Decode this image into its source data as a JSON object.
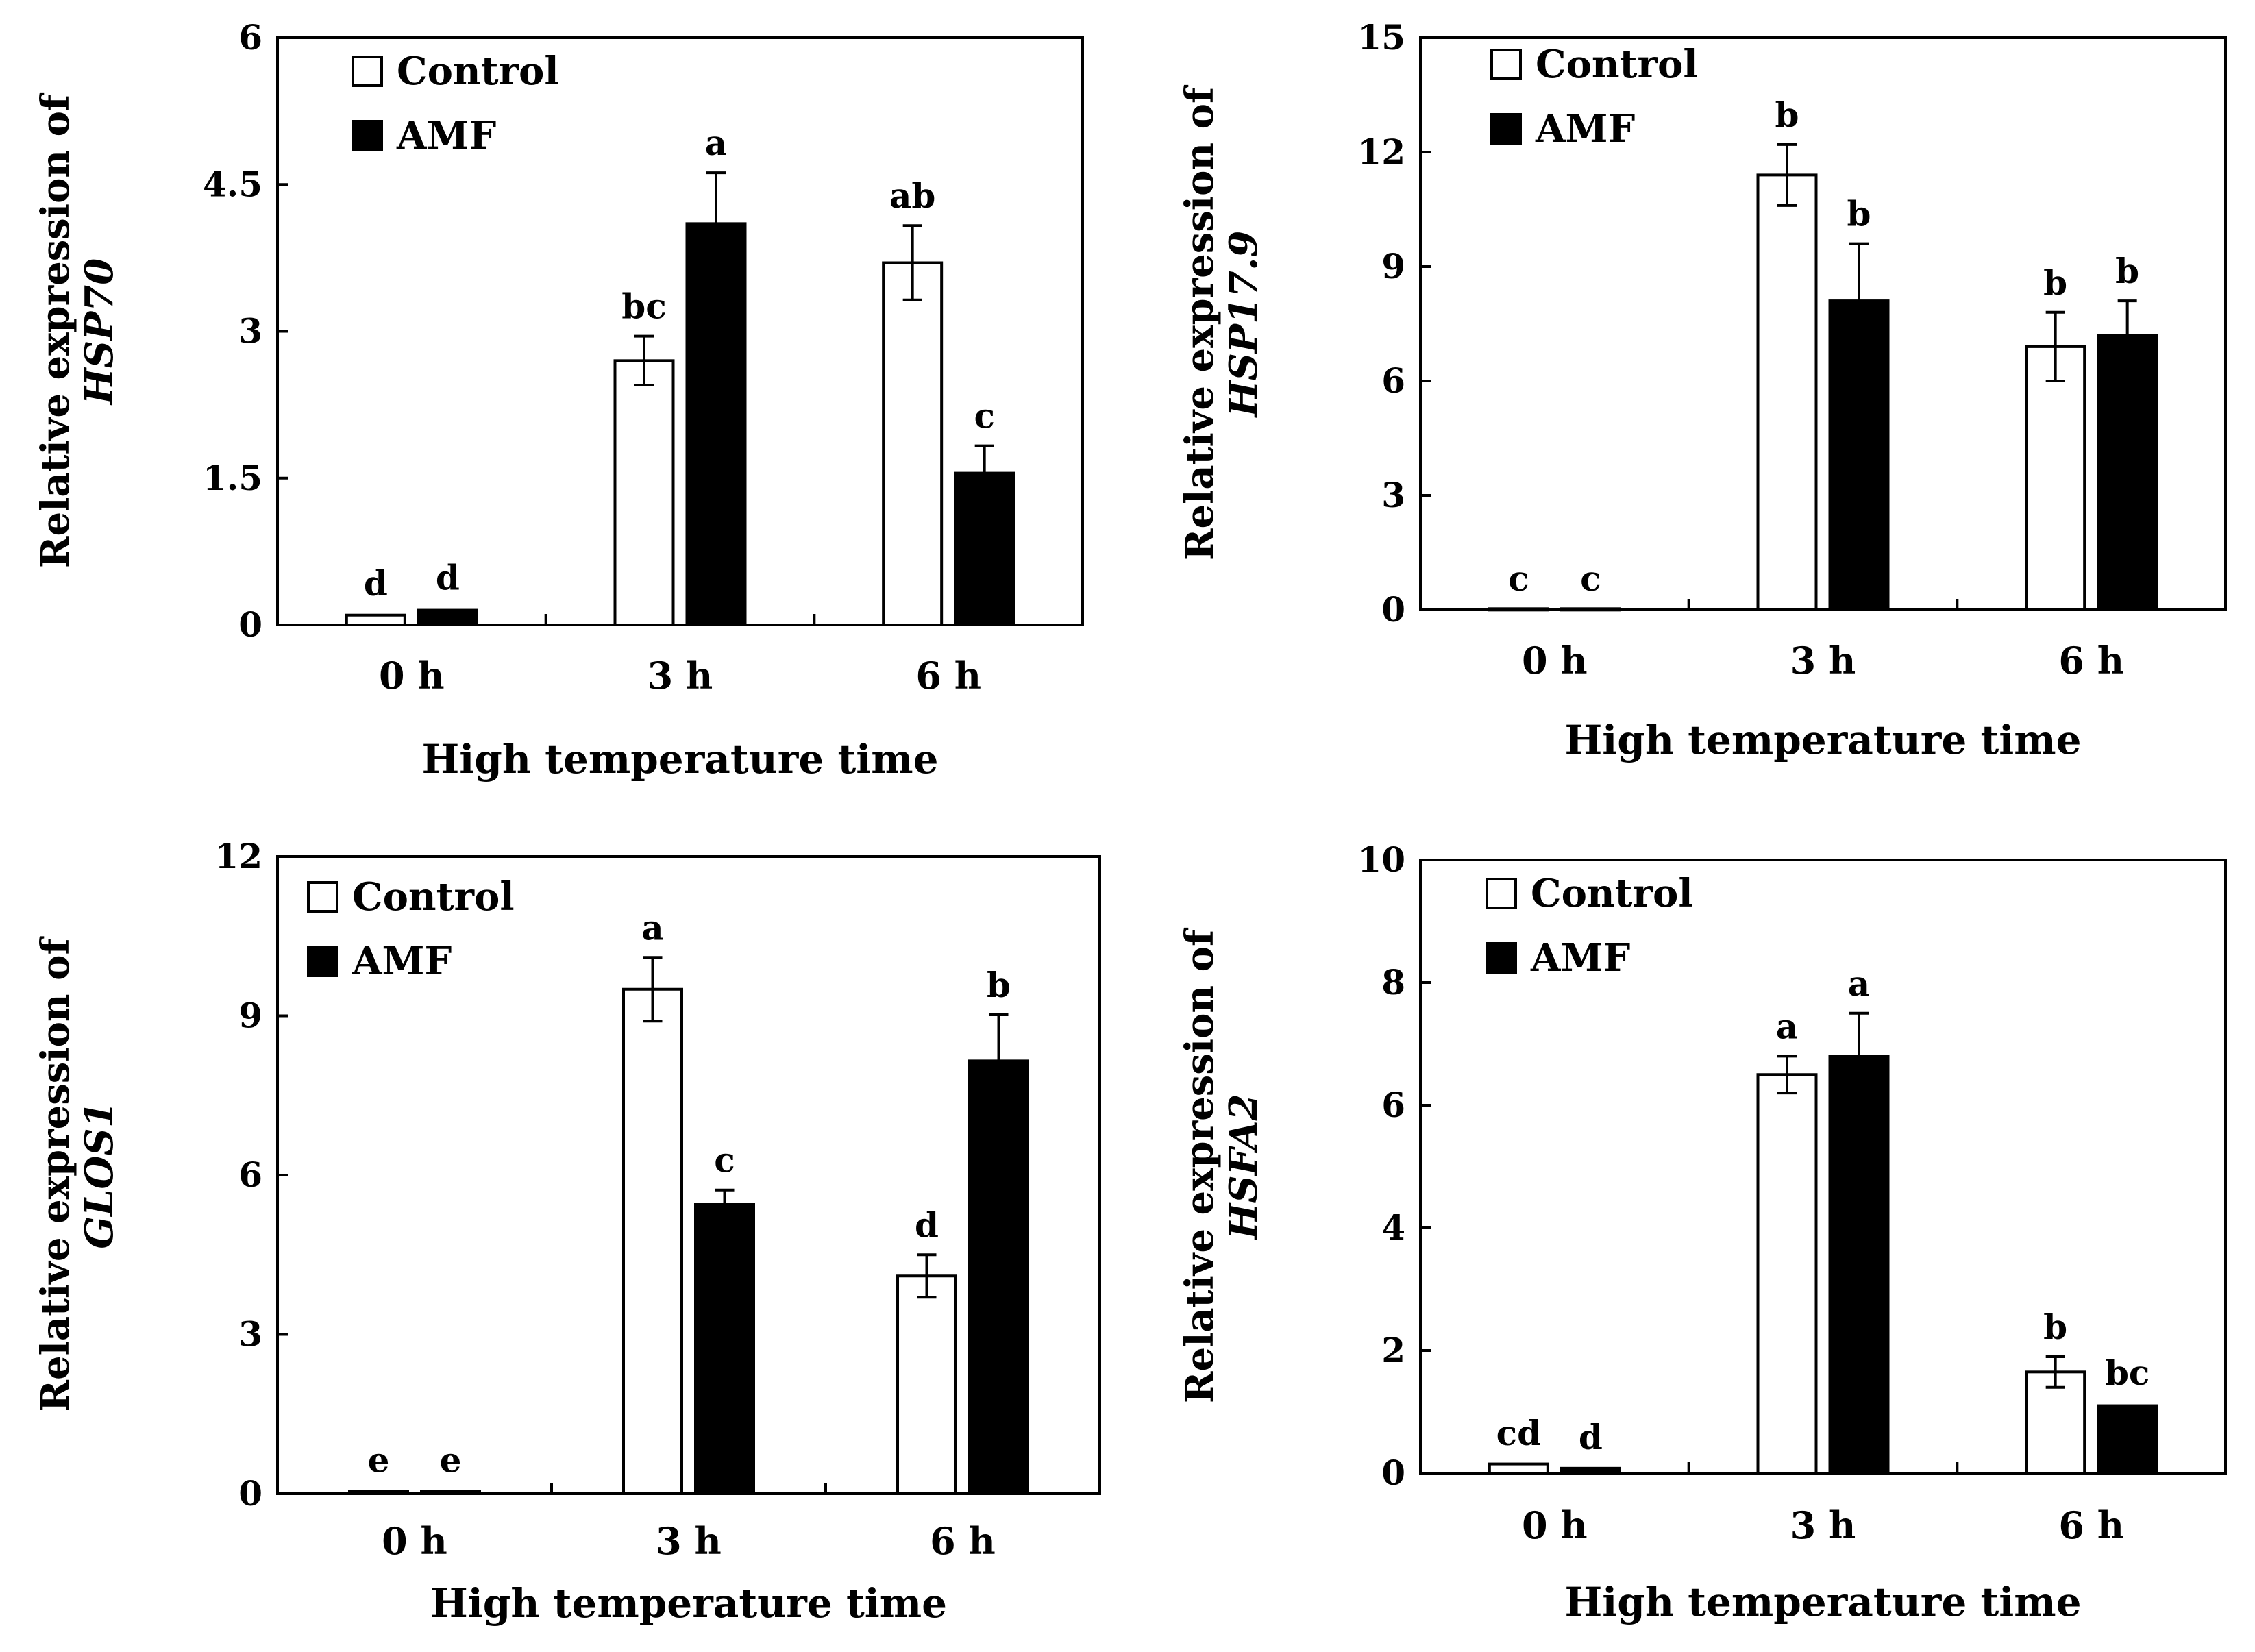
{
  "figure": {
    "legend": {
      "control": "Control",
      "amf": "AMF"
    },
    "colors": {
      "control": "#ffffff",
      "amf": "#000000",
      "stroke": "#000000"
    }
  },
  "chart_data": [
    {
      "type": "bar",
      "xlabel": "High temperature time",
      "ylabel_prefix": "Relative expression of",
      "gene": "HSP70",
      "categories": [
        "0 h",
        "3 h",
        "6 h"
      ],
      "ylim": [
        0,
        6
      ],
      "yticks": [
        0,
        1.5,
        3,
        4.5,
        6
      ],
      "ytick_labels": [
        "0",
        "1.5",
        "3",
        "4.5",
        "6"
      ],
      "series": [
        {
          "name": "Control",
          "values": [
            0.1,
            2.7,
            3.7
          ],
          "errors": [
            0.02,
            0.25,
            0.38
          ],
          "letters": [
            "d",
            "bc",
            "ab"
          ]
        },
        {
          "name": "AMF",
          "values": [
            0.15,
            4.1,
            1.55
          ],
          "errors": [
            0.03,
            0.52,
            0.28
          ],
          "letters": [
            "d",
            "a",
            "c"
          ]
        }
      ]
    },
    {
      "type": "bar",
      "xlabel": "High temperature time",
      "ylabel_prefix": "Relative expression of",
      "gene": "HSP17.9",
      "categories": [
        "0 h",
        "3 h",
        "6 h"
      ],
      "ylim": [
        0,
        15
      ],
      "yticks": [
        0,
        3,
        6,
        9,
        12,
        15
      ],
      "ytick_labels": [
        "0",
        "3",
        "6",
        "9",
        "12",
        "15"
      ],
      "series": [
        {
          "name": "Control",
          "values": [
            0.03,
            11.4,
            6.9
          ],
          "errors": [
            0.01,
            0.8,
            0.9
          ],
          "letters": [
            "c",
            "b",
            "b"
          ]
        },
        {
          "name": "AMF",
          "values": [
            0.03,
            8.1,
            7.2
          ],
          "errors": [
            0.01,
            1.5,
            0.9
          ],
          "letters": [
            "c",
            "b",
            "b"
          ]
        }
      ],
      "letters_note": ""
    },
    {
      "type": "bar",
      "xlabel": "High temperature time",
      "ylabel_prefix": "Relative expression of",
      "gene": "GLOS1",
      "categories": [
        "0 h",
        "3 h",
        "6 h"
      ],
      "ylim": [
        0,
        12
      ],
      "yticks": [
        0,
        3,
        6,
        9,
        12
      ],
      "ytick_labels": [
        "0",
        "3",
        "6",
        "9",
        "12"
      ],
      "series": [
        {
          "name": "Control",
          "values": [
            0.05,
            9.5,
            4.1
          ],
          "errors": [
            0.02,
            0.6,
            0.4
          ],
          "letters": [
            "e",
            "a",
            "d"
          ]
        },
        {
          "name": "AMF",
          "values": [
            0.05,
            5.45,
            8.15
          ],
          "errors": [
            0.02,
            0.27,
            0.87
          ],
          "letters": [
            "e",
            "c",
            "b"
          ]
        }
      ]
    },
    {
      "type": "bar",
      "xlabel": "High temperature time",
      "ylabel_prefix": "Relative expression of",
      "gene": "HSFA2",
      "categories": [
        "0 h",
        "3 h",
        "6 h"
      ],
      "ylim": [
        0,
        10
      ],
      "yticks": [
        0,
        2,
        4,
        6,
        8,
        10
      ],
      "ytick_labels": [
        "0",
        "2",
        "4",
        "6",
        "8",
        "10"
      ],
      "series": [
        {
          "name": "Control",
          "values": [
            0.15,
            6.5,
            1.65
          ],
          "errors": [
            0.02,
            0.3,
            0.25
          ],
          "letters": [
            "cd",
            "a",
            "b"
          ]
        },
        {
          "name": "AMF",
          "values": [
            0.08,
            6.8,
            1.1
          ],
          "errors": [
            0.02,
            0.7,
            0.05
          ],
          "letters": [
            "d",
            "a",
            "bc"
          ]
        }
      ]
    }
  ]
}
